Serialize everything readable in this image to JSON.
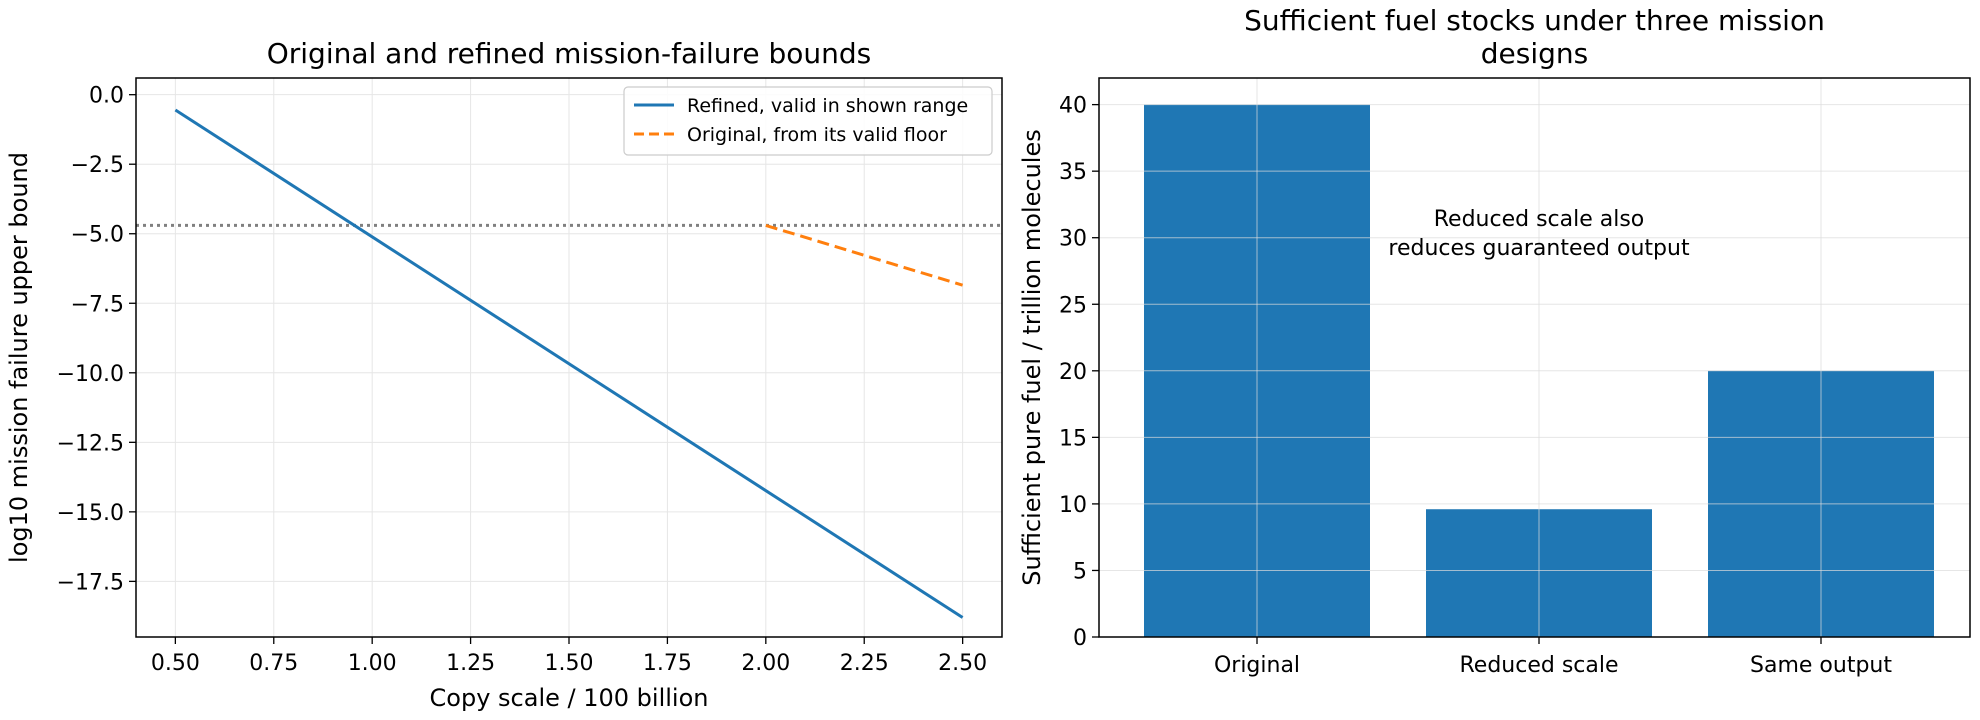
{
  "chart_data": [
    {
      "type": "line",
      "title": "Original and refined mission-failure bounds",
      "xlabel": "Copy scale / 100 billion",
      "ylabel": "log10 mission failure upper bound",
      "xlim": [
        0.4,
        2.6
      ],
      "ylim": [
        -19.5,
        0.6
      ],
      "xticks": [
        0.5,
        0.75,
        1.0,
        1.25,
        1.5,
        1.75,
        2.0,
        2.25,
        2.5
      ],
      "xtick_labels": [
        "0.50",
        "0.75",
        "1.00",
        "1.25",
        "1.50",
        "1.75",
        "2.00",
        "2.25",
        "2.50"
      ],
      "yticks": [
        0.0,
        -2.5,
        -5.0,
        -7.5,
        -10.0,
        -12.5,
        -15.0,
        -17.5
      ],
      "ytick_labels": [
        "0.0",
        "−2.5",
        "−5.0",
        "−7.5",
        "−10.0",
        "−12.5",
        "−15.0",
        "−17.5"
      ],
      "grid": true,
      "legend_position": "top-right",
      "series": [
        {
          "name": "Refined, valid in shown range",
          "color": "#1f77b4",
          "style": "solid",
          "x": [
            0.5,
            2.5
          ],
          "y": [
            -0.55,
            -18.8
          ]
        },
        {
          "name": "Original, from its valid floor",
          "color": "#ff7f0e",
          "style": "dashed",
          "x": [
            2.0,
            2.5
          ],
          "y": [
            -4.7,
            -6.85
          ]
        }
      ],
      "reference_lines": [
        {
          "axis": "y",
          "value": -4.7,
          "color": "#808080",
          "style": "dotted"
        }
      ]
    },
    {
      "type": "bar",
      "title": "Sufficient fuel stocks under three mission designs",
      "title_lines": [
        "Sufficient fuel stocks under three mission",
        "designs"
      ],
      "xlabel": "",
      "ylabel": "Sufficient pure fuel / trillion molecules",
      "categories": [
        "Original",
        "Reduced scale",
        "Same output"
      ],
      "values": [
        40,
        9.6,
        20
      ],
      "color": "#1f77b4",
      "ylim": [
        0,
        42
      ],
      "yticks": [
        0,
        5,
        10,
        15,
        20,
        25,
        30,
        35,
        40
      ],
      "ytick_labels": [
        "0",
        "5",
        "10",
        "15",
        "20",
        "25",
        "30",
        "35",
        "40"
      ],
      "grid": true,
      "annotation": {
        "lines": [
          "Reduced scale also",
          "reduces guaranteed output"
        ],
        "x": 1.0,
        "y": 31.5
      }
    }
  ]
}
